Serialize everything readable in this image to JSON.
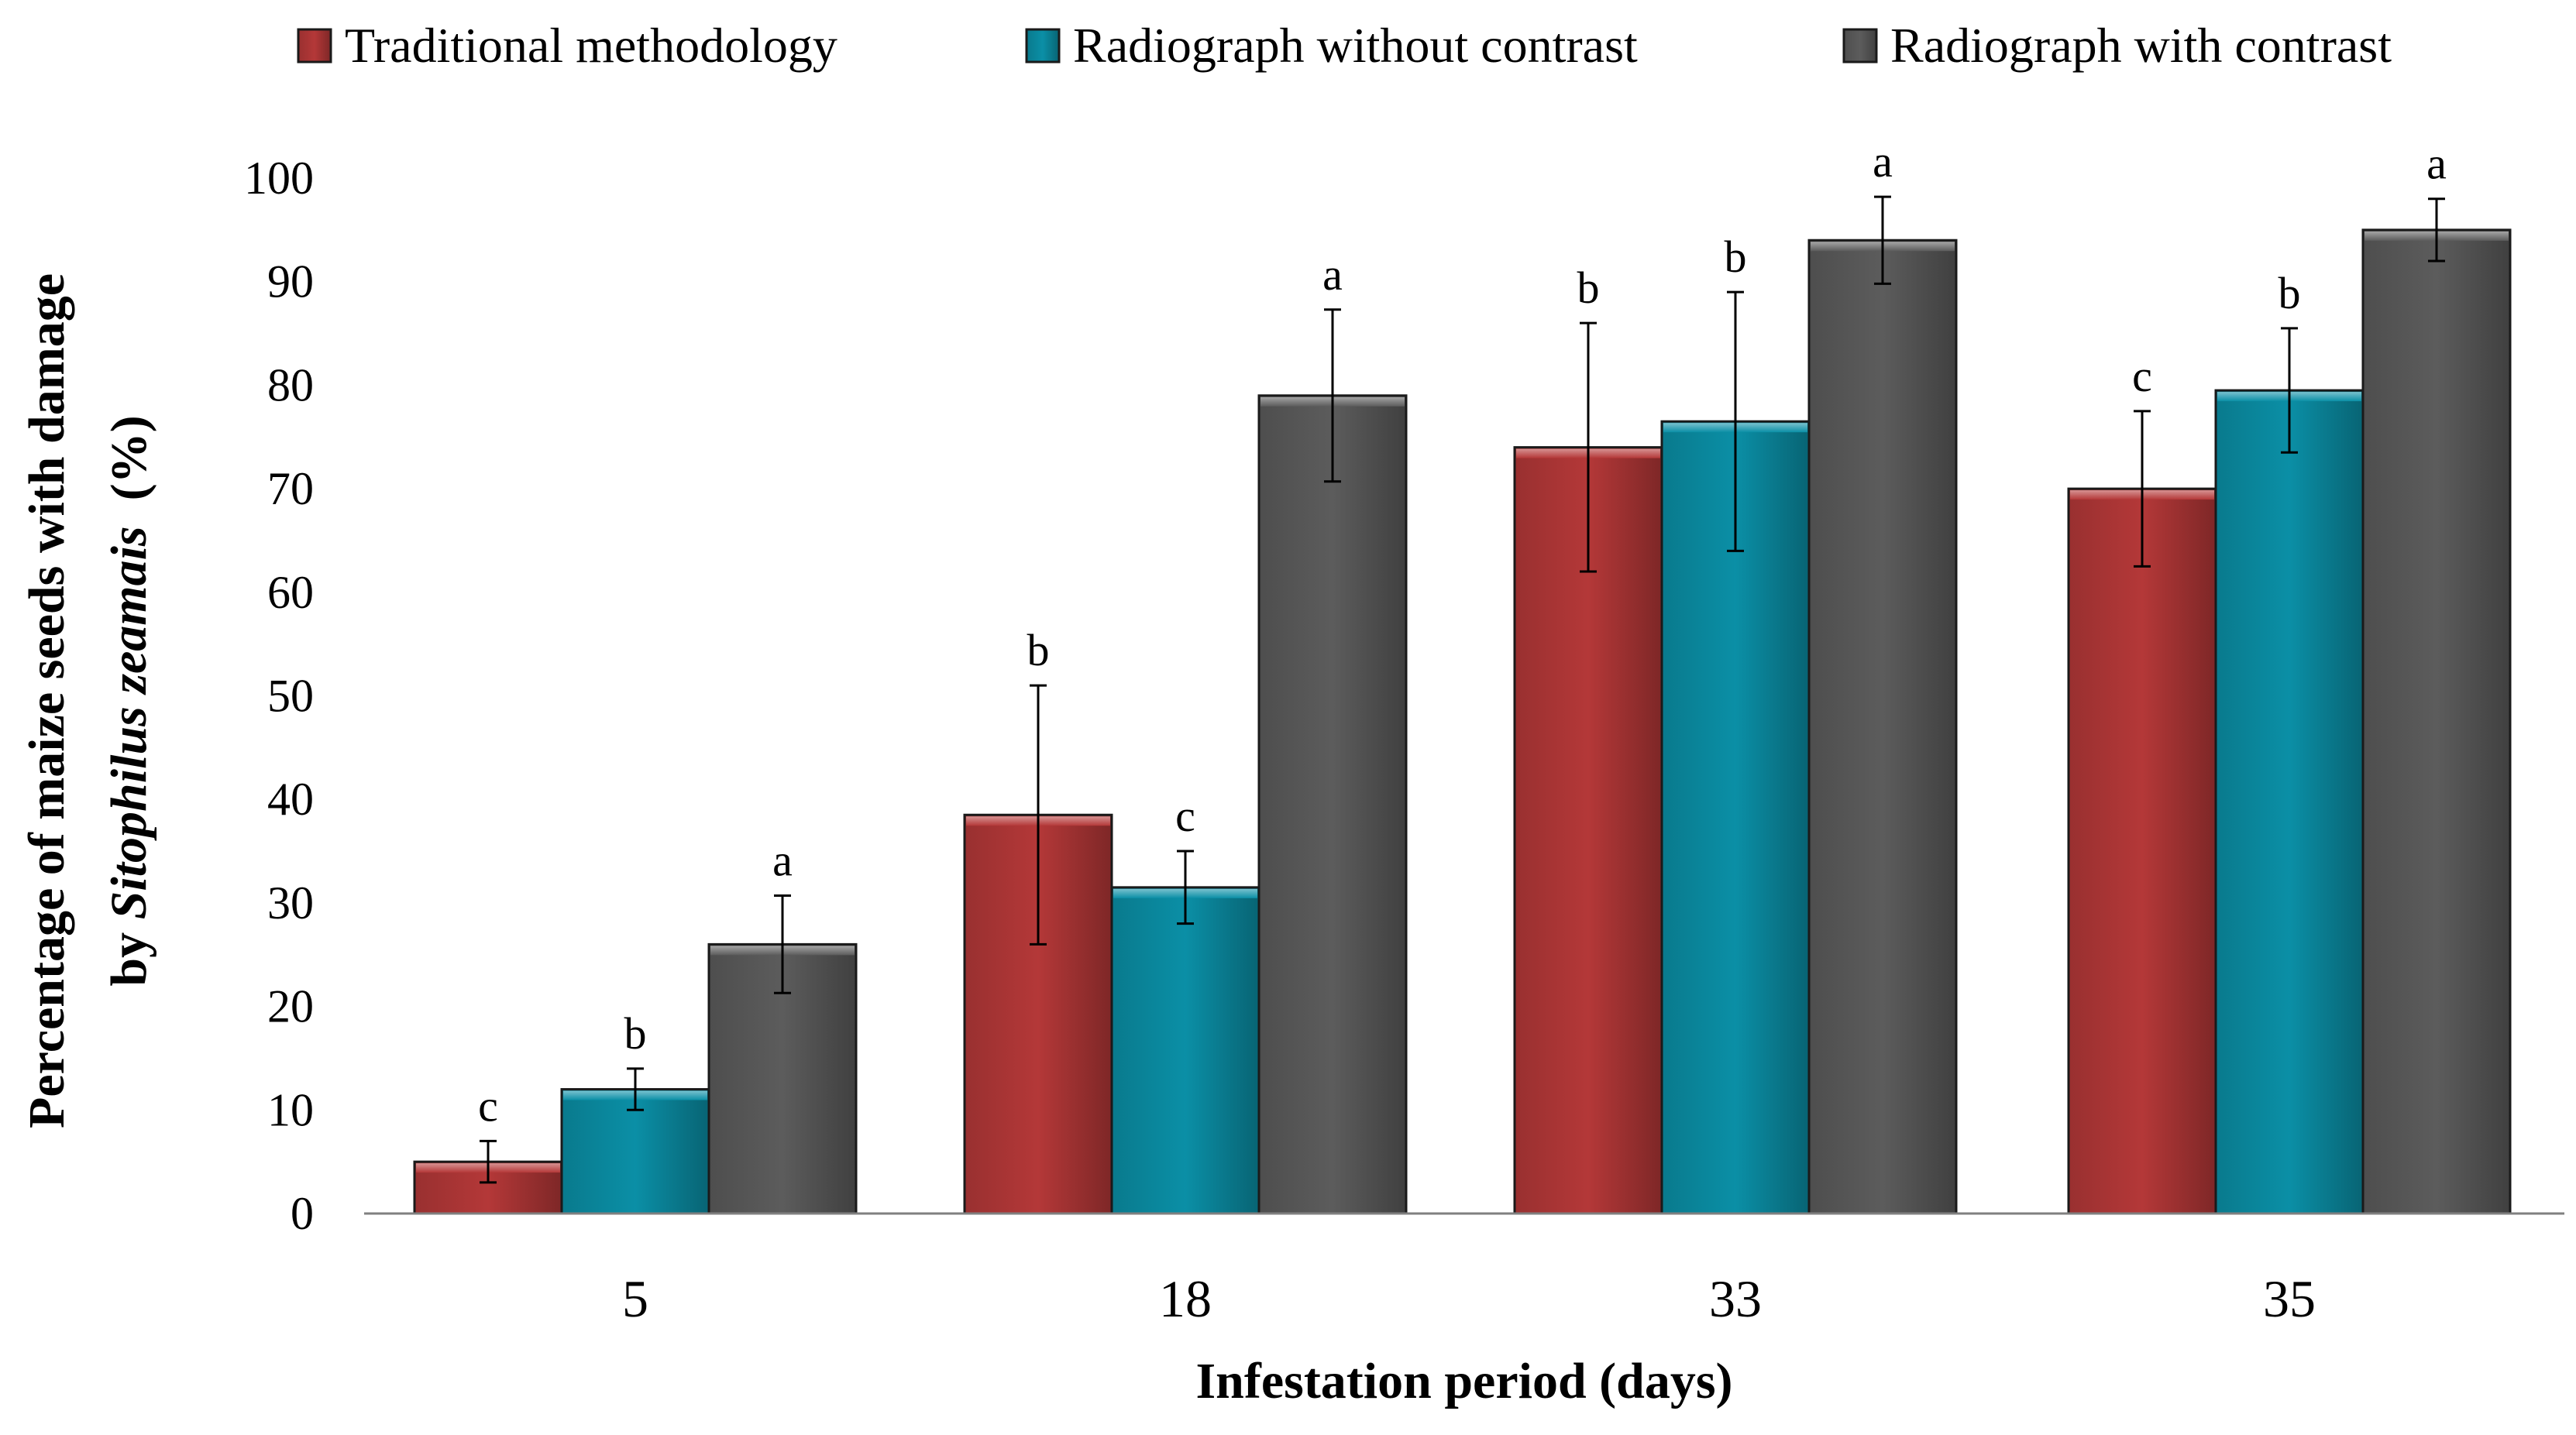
{
  "chart_data": {
    "type": "bar",
    "categories": [
      "5",
      "18",
      "33",
      "35"
    ],
    "xlabel": "Infestation period (days)",
    "ylabel": {
      "line1": "Percentage of maize seeds with damage",
      "line2_prefix": "by ",
      "line2_species": "Sitophilus zeamais",
      "line2_suffix": "  (%)"
    },
    "ylim": [
      0,
      100
    ],
    "yticks": [
      0,
      10,
      20,
      30,
      40,
      50,
      60,
      70,
      80,
      90,
      100
    ],
    "grid": false,
    "legend_position": "top",
    "series": [
      {
        "name": "Traditional methodology",
        "color": "#b43838",
        "values": [
          5,
          38.5,
          74,
          70
        ],
        "errors": [
          2,
          12.5,
          12,
          7.5
        ],
        "letters": [
          "c",
          "b",
          "b",
          "c"
        ]
      },
      {
        "name": "Radiograph without contrast",
        "color": "#0b8fa6",
        "values": [
          12,
          31.5,
          76.5,
          79.5
        ],
        "errors": [
          2,
          3.5,
          12.5,
          6
        ],
        "letters": [
          "b",
          "c",
          "b",
          "b"
        ]
      },
      {
        "name": "Radiograph with contrast",
        "color": "#5c5c5c",
        "values": [
          26,
          79,
          94,
          95
        ],
        "errors": [
          4.7,
          8.3,
          4.2,
          3
        ],
        "letters": [
          "a",
          "a",
          "a",
          "a"
        ]
      }
    ]
  }
}
